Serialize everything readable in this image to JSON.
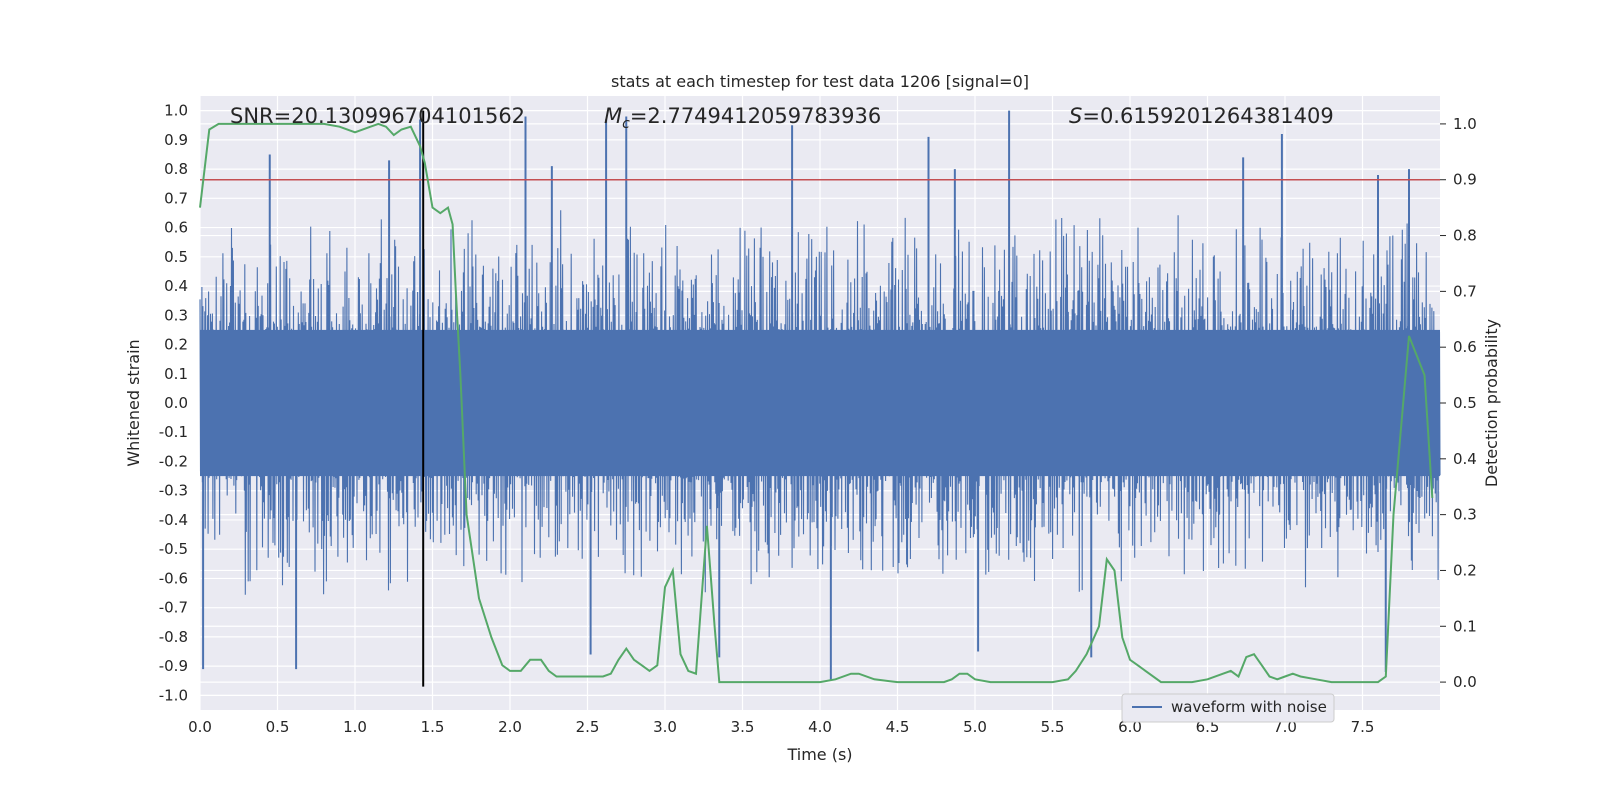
{
  "chart_data": {
    "type": "line",
    "title": "stats at each timestep for test data 1206 [signal=0]",
    "xlabel": "Time (s)",
    "ylabel_left": "Whitened strain",
    "ylabel_right": "Detection probability",
    "xlim": [
      0,
      8
    ],
    "ylim_left": [
      -1.05,
      1.05
    ],
    "ylim_right": [
      -0.05,
      1.05
    ],
    "x_ticks": [
      "0.0",
      "0.5",
      "1.0",
      "1.5",
      "2.0",
      "2.5",
      "3.0",
      "3.5",
      "4.0",
      "4.5",
      "5.0",
      "5.5",
      "6.0",
      "6.5",
      "7.0",
      "7.5"
    ],
    "x_tick_values": [
      0,
      0.5,
      1,
      1.5,
      2,
      2.5,
      3,
      3.5,
      4,
      4.5,
      5,
      5.5,
      6,
      6.5,
      7,
      7.5
    ],
    "y_left_ticks": [
      "1.0",
      "0.9",
      "0.8",
      "0.7",
      "0.6",
      "0.5",
      "0.4",
      "0.3",
      "0.2",
      "0.1",
      "0.0",
      "-0.1",
      "-0.2",
      "-0.3",
      "-0.4",
      "-0.5",
      "-0.6",
      "-0.7",
      "-0.8",
      "-0.9",
      "-1.0"
    ],
    "y_left_tick_values": [
      1,
      0.9,
      0.8,
      0.7,
      0.6,
      0.5,
      0.4,
      0.3,
      0.2,
      0.1,
      0,
      -0.1,
      -0.2,
      -0.3,
      -0.4,
      -0.5,
      -0.6,
      -0.7,
      -0.8,
      -0.9,
      -1.0
    ],
    "y_right_ticks": [
      "1.0",
      "0.9",
      "0.8",
      "0.7",
      "0.6",
      "0.5",
      "0.4",
      "0.3",
      "0.2",
      "0.1",
      "0.0"
    ],
    "y_right_tick_values": [
      1,
      0.9,
      0.8,
      0.7,
      0.6,
      0.5,
      0.4,
      0.3,
      0.2,
      0.1,
      0
    ],
    "grid": true,
    "legend_position": "lower-right",
    "annotations": {
      "snr": "SNR=20.130996704101562",
      "mc_symbol": "M",
      "mc_sub": "c",
      "mc_value": "=2.7749412059783936",
      "s_symbol": "S",
      "s_value": "=0.6159201264381409"
    },
    "series": [
      {
        "name": "waveform with noise",
        "axis": "left",
        "color": "#4c72b0",
        "spikes": [
          {
            "x": 0.02,
            "y": -0.91
          },
          {
            "x": 0.45,
            "y": 0.85
          },
          {
            "x": 0.62,
            "y": -0.91
          },
          {
            "x": 1.22,
            "y": 0.83
          },
          {
            "x": 1.42,
            "y": 0.97
          },
          {
            "x": 2.1,
            "y": 0.98
          },
          {
            "x": 2.27,
            "y": 0.81
          },
          {
            "x": 2.62,
            "y": 0.97
          },
          {
            "x": 2.75,
            "y": 0.98
          },
          {
            "x": 2.52,
            "y": -0.86
          },
          {
            "x": 3.35,
            "y": -0.87
          },
          {
            "x": 3.82,
            "y": 0.95
          },
          {
            "x": 4.07,
            "y": -0.95
          },
          {
            "x": 4.7,
            "y": 0.91
          },
          {
            "x": 4.87,
            "y": 0.8
          },
          {
            "x": 5.22,
            "y": 1.0
          },
          {
            "x": 5.02,
            "y": -0.85
          },
          {
            "x": 5.75,
            "y": -0.87
          },
          {
            "x": 6.73,
            "y": 0.84
          },
          {
            "x": 6.98,
            "y": 0.92
          },
          {
            "x": 7.6,
            "y": 0.78
          },
          {
            "x": 7.65,
            "y": -0.92
          },
          {
            "x": 7.8,
            "y": 0.8
          }
        ],
        "noise_band": {
          "upper": 0.25,
          "lower": -0.25,
          "peak_typical": 0.6
        }
      },
      {
        "name": "Detection probability",
        "axis": "right",
        "color": "#55a868",
        "x": [
          0.0,
          0.06,
          0.12,
          0.2,
          0.3,
          0.4,
          0.5,
          0.6,
          0.7,
          0.8,
          0.9,
          1.0,
          1.1,
          1.15,
          1.2,
          1.25,
          1.3,
          1.36,
          1.42,
          1.45,
          1.5,
          1.55,
          1.6,
          1.63,
          1.65,
          1.68,
          1.72,
          1.8,
          1.88,
          1.95,
          2.0,
          2.07,
          2.13,
          2.2,
          2.25,
          2.3,
          2.4,
          2.5,
          2.6,
          2.65,
          2.7,
          2.75,
          2.8,
          2.85,
          2.9,
          2.95,
          3.0,
          3.05,
          3.1,
          3.15,
          3.2,
          3.27,
          3.32,
          3.35,
          3.4,
          3.45,
          3.5,
          3.6,
          3.8,
          4.0,
          4.1,
          4.2,
          4.25,
          4.35,
          4.5,
          4.6,
          4.8,
          4.85,
          4.9,
          4.95,
          5.0,
          5.1,
          5.2,
          5.3,
          5.5,
          5.6,
          5.65,
          5.72,
          5.8,
          5.85,
          5.9,
          5.95,
          6.0,
          6.05,
          6.1,
          6.2,
          6.3,
          6.4,
          6.5,
          6.6,
          6.65,
          6.7,
          6.75,
          6.8,
          6.85,
          6.9,
          6.95,
          7.0,
          7.05,
          7.1,
          7.2,
          7.3,
          7.5,
          7.6,
          7.65,
          7.7,
          7.8,
          7.9,
          7.95
        ],
        "y": [
          0.85,
          0.99,
          1.0,
          1.0,
          1.0,
          1.0,
          1.0,
          1.0,
          1.0,
          1.0,
          0.995,
          0.985,
          0.995,
          1.0,
          0.995,
          0.98,
          0.99,
          0.995,
          0.96,
          0.93,
          0.85,
          0.84,
          0.85,
          0.82,
          0.7,
          0.55,
          0.3,
          0.15,
          0.08,
          0.03,
          0.02,
          0.02,
          0.04,
          0.04,
          0.02,
          0.01,
          0.01,
          0.01,
          0.01,
          0.015,
          0.04,
          0.06,
          0.04,
          0.03,
          0.02,
          0.03,
          0.17,
          0.2,
          0.05,
          0.02,
          0.015,
          0.28,
          0.1,
          0.0,
          0.0,
          0.0,
          0.0,
          0.0,
          0.0,
          0.0,
          0.005,
          0.015,
          0.015,
          0.005,
          0.0,
          0.0,
          0.0,
          0.005,
          0.015,
          0.015,
          0.005,
          0.0,
          0.0,
          0.0,
          0.0,
          0.005,
          0.02,
          0.05,
          0.1,
          0.22,
          0.2,
          0.08,
          0.04,
          0.03,
          0.02,
          0.0,
          0.0,
          0.0,
          0.005,
          0.015,
          0.02,
          0.01,
          0.045,
          0.05,
          0.03,
          0.01,
          0.005,
          0.01,
          0.015,
          0.01,
          0.005,
          0.0,
          0.0,
          0.0,
          0.01,
          0.3,
          0.62,
          0.55,
          0.33
        ]
      },
      {
        "name": "threshold",
        "axis": "right",
        "color": "#c44e52",
        "y": 0.9
      },
      {
        "name": "peak time marker",
        "axis": "left",
        "color": "#000000",
        "x": 1.44,
        "y_range": [
          -0.97,
          1.0
        ]
      }
    ]
  },
  "colors": {
    "plot_background": "#eaeaf2",
    "grid": "#ffffff",
    "waveform": "#4c72b0",
    "probability": "#55a868",
    "threshold": "#c44e52",
    "marker": "#000000"
  }
}
